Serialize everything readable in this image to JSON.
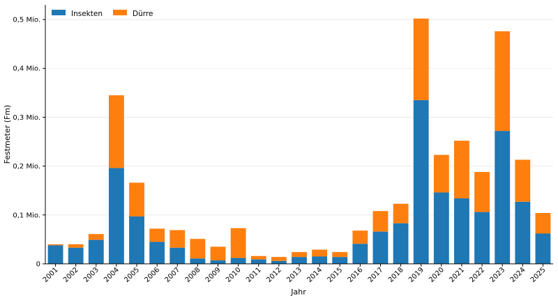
{
  "chart_data": {
    "type": "bar",
    "stacked": true,
    "title": "",
    "xlabel": "Jahr",
    "ylabel": "Festmeter (Fm)",
    "categories": [
      "2001",
      "2002",
      "2003",
      "2004",
      "2005",
      "2006",
      "2007",
      "2008",
      "2009",
      "2010",
      "2011",
      "2012",
      "2013",
      "2014",
      "2015",
      "2016",
      "2017",
      "2018",
      "2019",
      "2020",
      "2021",
      "2022",
      "2023",
      "2024",
      "2025"
    ],
    "series": [
      {
        "name": "Insekten",
        "color": "#1f77b4",
        "values": [
          38000,
          33000,
          49000,
          196000,
          97000,
          45000,
          33000,
          11000,
          7000,
          12000,
          9000,
          6000,
          14000,
          15000,
          14000,
          41000,
          66000,
          83000,
          335000,
          146000,
          134000,
          106000,
          272000,
          127000,
          62000
        ]
      },
      {
        "name": "Dürre",
        "color": "#ff7f0e",
        "values": [
          2000,
          7000,
          12000,
          149000,
          69000,
          27000,
          36000,
          40000,
          28000,
          61000,
          7000,
          8000,
          10000,
          14000,
          10000,
          27000,
          42000,
          40000,
          167000,
          77000,
          118000,
          82000,
          204000,
          86000,
          42000
        ]
      }
    ],
    "ylim": [
      0,
      530000
    ],
    "yticks": [
      0,
      100000,
      200000,
      300000,
      400000,
      500000
    ],
    "ytick_labels": [
      "0",
      "0,1 Mio.",
      "0,2 Mio.",
      "0,3 Mio.",
      "0,4 Mio.",
      "0,5 Mio."
    ],
    "grid": "horizontal",
    "legend_position": "top-left"
  }
}
